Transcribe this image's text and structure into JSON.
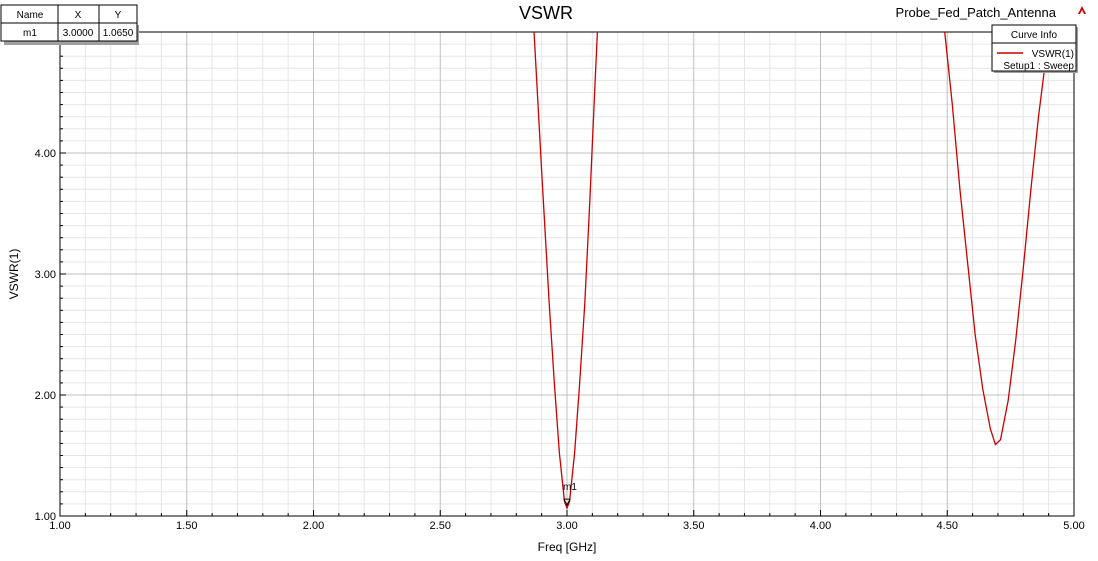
{
  "header": {
    "title": "VSWR",
    "project": "Probe_Fed_Patch_Antenna",
    "logo_icon": "ansys-logo-icon"
  },
  "marker_table": {
    "headers": [
      "Name",
      "X",
      "Y"
    ],
    "rows": [
      {
        "name": "m1",
        "x": "3.0000",
        "y": "1.0650"
      }
    ]
  },
  "legend": {
    "header": "Curve Info",
    "entries": [
      {
        "name": "VSWR(1)",
        "sub": "Setup1 : Sweep",
        "color": "#cc0000"
      }
    ]
  },
  "chart_data": {
    "type": "line",
    "title": "VSWR",
    "xlabel": "Freq [GHz]",
    "ylabel": "VSWR(1)",
    "xlim": [
      1.0,
      5.0
    ],
    "ylim": [
      1.0,
      5.0
    ],
    "x_ticks": [
      "1.00",
      "1.50",
      "2.00",
      "2.50",
      "3.00",
      "3.50",
      "4.00",
      "4.50",
      "5.00"
    ],
    "y_ticks": [
      "1.00",
      "2.00",
      "3.00",
      "4.00"
    ],
    "grid": true,
    "legend_position": "top-right",
    "series": [
      {
        "name": "VSWR(1)",
        "color": "#cc0000",
        "x": [
          2.87,
          2.9,
          2.93,
          2.95,
          2.97,
          2.99,
          3.0,
          3.01,
          3.03,
          3.05,
          3.07,
          3.09,
          3.11,
          3.12,
          4.49,
          4.52,
          4.55,
          4.58,
          4.61,
          4.64,
          4.67,
          4.69,
          4.71,
          4.74,
          4.77,
          4.8,
          4.83,
          4.86,
          4.89,
          4.92
        ],
        "y": [
          5.0,
          3.85,
          2.75,
          2.1,
          1.52,
          1.12,
          1.065,
          1.12,
          1.52,
          2.1,
          2.75,
          3.6,
          4.55,
          5.0,
          5.0,
          4.4,
          3.7,
          3.1,
          2.5,
          2.05,
          1.72,
          1.59,
          1.63,
          1.95,
          2.45,
          3.05,
          3.7,
          4.3,
          4.8,
          5.0
        ]
      }
    ],
    "markers": [
      {
        "name": "m1",
        "x": 3.0,
        "y": 1.065
      }
    ]
  }
}
